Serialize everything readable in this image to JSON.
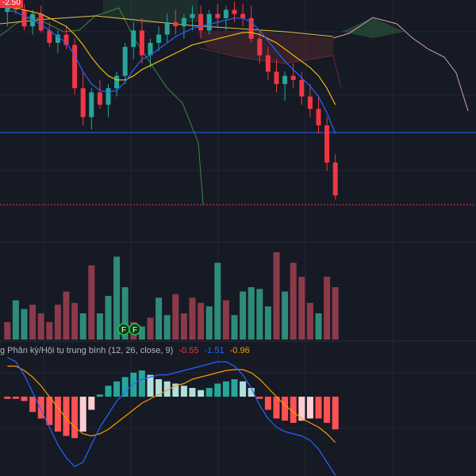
{
  "colors": {
    "background": "#161a25",
    "grid": "#232733",
    "up": "#26a69a",
    "down": "#f23645",
    "vol_up": "#2e8b7a",
    "vol_down": "#8b3a4a",
    "hist_pos_strong": "#26a69a",
    "hist_pos_weak": "#b2dfdb",
    "hist_neg_strong": "#ff5252",
    "hist_neg_weak": "#ffcdd2",
    "macd_line": "#2962ff",
    "signal_line": "#ff9800",
    "hline": "#2962ff",
    "last_price_line": "#f23645",
    "ma_blue": "#2962ff",
    "ma_orange": "#f0b90b",
    "ma_yellow": "#e5c04a",
    "lagging_green": "#3c8a3c",
    "cloud_green": "#2a5a3a",
    "cloud_red": "#5a2a30",
    "kumo_pink": "#d8a0a8"
  },
  "top_badge": "-2.50",
  "macd_legend": {
    "name": "g Phân kỳ/Hội tụ trung bình (12, 26, close, 9)",
    "v1": "-0.55",
    "v2": "-1.51",
    "v3": "-0.96"
  },
  "flags": [
    "F",
    "F"
  ],
  "chart_data": {
    "type": "candlestick",
    "title": "",
    "xlabel": "",
    "ylabel": "",
    "ylim": [
      0,
      100
    ],
    "candles": [
      {
        "o": 95,
        "h": 99,
        "l": 88,
        "c": 97
      },
      {
        "o": 97,
        "h": 100,
        "l": 94,
        "c": 96
      },
      {
        "o": 96,
        "h": 99,
        "l": 86,
        "c": 88
      },
      {
        "o": 88,
        "h": 96,
        "l": 84,
        "c": 94
      },
      {
        "o": 94,
        "h": 98,
        "l": 85,
        "c": 86
      },
      {
        "o": 86,
        "h": 90,
        "l": 78,
        "c": 80
      },
      {
        "o": 80,
        "h": 86,
        "l": 75,
        "c": 84
      },
      {
        "o": 84,
        "h": 88,
        "l": 77,
        "c": 79
      },
      {
        "o": 79,
        "h": 82,
        "l": 55,
        "c": 58
      },
      {
        "o": 58,
        "h": 66,
        "l": 40,
        "c": 44
      },
      {
        "o": 44,
        "h": 58,
        "l": 38,
        "c": 56
      },
      {
        "o": 56,
        "h": 62,
        "l": 48,
        "c": 50
      },
      {
        "o": 50,
        "h": 60,
        "l": 44,
        "c": 58
      },
      {
        "o": 58,
        "h": 66,
        "l": 54,
        "c": 64
      },
      {
        "o": 64,
        "h": 80,
        "l": 60,
        "c": 78
      },
      {
        "o": 78,
        "h": 90,
        "l": 72,
        "c": 86
      },
      {
        "o": 86,
        "h": 92,
        "l": 70,
        "c": 74
      },
      {
        "o": 74,
        "h": 82,
        "l": 68,
        "c": 80
      },
      {
        "o": 80,
        "h": 88,
        "l": 76,
        "c": 84
      },
      {
        "o": 84,
        "h": 94,
        "l": 80,
        "c": 90
      },
      {
        "o": 90,
        "h": 96,
        "l": 84,
        "c": 88
      },
      {
        "o": 88,
        "h": 94,
        "l": 82,
        "c": 92
      },
      {
        "o": 92,
        "h": 98,
        "l": 86,
        "c": 94
      },
      {
        "o": 94,
        "h": 98,
        "l": 82,
        "c": 86
      },
      {
        "o": 86,
        "h": 96,
        "l": 84,
        "c": 94
      },
      {
        "o": 94,
        "h": 99,
        "l": 88,
        "c": 92
      },
      {
        "o": 92,
        "h": 98,
        "l": 86,
        "c": 96
      },
      {
        "o": 96,
        "h": 100,
        "l": 90,
        "c": 94
      },
      {
        "o": 94,
        "h": 99,
        "l": 88,
        "c": 92
      },
      {
        "o": 92,
        "h": 98,
        "l": 80,
        "c": 82
      },
      {
        "o": 82,
        "h": 86,
        "l": 70,
        "c": 74
      },
      {
        "o": 74,
        "h": 78,
        "l": 62,
        "c": 66
      },
      {
        "o": 66,
        "h": 72,
        "l": 56,
        "c": 60
      },
      {
        "o": 60,
        "h": 66,
        "l": 52,
        "c": 64
      },
      {
        "o": 64,
        "h": 70,
        "l": 58,
        "c": 62
      },
      {
        "o": 62,
        "h": 66,
        "l": 50,
        "c": 54
      },
      {
        "o": 54,
        "h": 60,
        "l": 44,
        "c": 48
      },
      {
        "o": 48,
        "h": 54,
        "l": 36,
        "c": 40
      },
      {
        "o": 40,
        "h": 44,
        "l": 18,
        "c": 22
      },
      {
        "o": 22,
        "h": 26,
        "l": 4,
        "c": 6
      }
    ],
    "ma_fast": [
      96,
      95,
      93,
      91,
      89,
      86,
      83,
      80,
      74,
      66,
      60,
      57,
      56,
      57,
      61,
      67,
      72,
      74,
      77,
      80,
      83,
      85,
      87,
      88,
      89,
      90,
      91,
      92,
      92,
      90,
      86,
      81,
      76,
      71,
      67,
      63,
      59,
      54,
      46,
      36
    ],
    "ma_slow": [
      97,
      97,
      96,
      95,
      94,
      92,
      90,
      88,
      84,
      79,
      73,
      68,
      64,
      62,
      62,
      64,
      67,
      69,
      71,
      73,
      75,
      77,
      79,
      80,
      81,
      82,
      83,
      84,
      85,
      85,
      84,
      82,
      80,
      77,
      74,
      71,
      68,
      64,
      58,
      50
    ],
    "volumes": [
      {
        "v": 20,
        "up": false
      },
      {
        "v": 45,
        "up": true
      },
      {
        "v": 35,
        "up": true
      },
      {
        "v": 40,
        "up": false
      },
      {
        "v": 30,
        "up": false
      },
      {
        "v": 20,
        "up": false
      },
      {
        "v": 40,
        "up": false
      },
      {
        "v": 55,
        "up": false
      },
      {
        "v": 42,
        "up": false
      },
      {
        "v": 30,
        "up": true
      },
      {
        "v": 85,
        "up": false
      },
      {
        "v": 30,
        "up": true
      },
      {
        "v": 50,
        "up": true
      },
      {
        "v": 95,
        "up": true
      },
      {
        "v": 60,
        "up": true
      },
      {
        "v": 20,
        "up": false
      },
      {
        "v": 15,
        "up": true
      },
      {
        "v": 25,
        "up": false
      },
      {
        "v": 48,
        "up": true
      },
      {
        "v": 28,
        "up": true
      },
      {
        "v": 52,
        "up": false
      },
      {
        "v": 30,
        "up": false
      },
      {
        "v": 48,
        "up": false
      },
      {
        "v": 42,
        "up": false
      },
      {
        "v": 38,
        "up": true
      },
      {
        "v": 88,
        "up": true
      },
      {
        "v": 45,
        "up": false
      },
      {
        "v": 28,
        "up": true
      },
      {
        "v": 55,
        "up": true
      },
      {
        "v": 60,
        "up": true
      },
      {
        "v": 58,
        "up": true
      },
      {
        "v": 38,
        "up": true
      },
      {
        "v": 100,
        "up": false
      },
      {
        "v": 55,
        "up": true
      },
      {
        "v": 88,
        "up": false
      },
      {
        "v": 72,
        "up": false
      },
      {
        "v": 42,
        "up": false
      },
      {
        "v": 30,
        "up": true
      },
      {
        "v": 72,
        "up": false
      },
      {
        "v": 60,
        "up": false
      }
    ],
    "macd_hist": [
      -0.05,
      -0.05,
      -0.1,
      -0.35,
      -0.5,
      -0.65,
      -0.8,
      -0.9,
      -0.95,
      -0.8,
      -0.3,
      0.05,
      0.25,
      0.35,
      0.45,
      0.55,
      0.6,
      0.5,
      0.4,
      0.35,
      0.3,
      0.25,
      0.2,
      0.15,
      0.2,
      0.3,
      0.35,
      0.4,
      0.35,
      0.2,
      -0.05,
      -0.3,
      -0.5,
      -0.55,
      -0.6,
      -0.55,
      -0.5,
      -0.5,
      -0.6,
      -0.75
    ],
    "macd_line": [
      0.9,
      0.8,
      0.5,
      0.1,
      -0.3,
      -0.7,
      -1.1,
      -1.4,
      -1.6,
      -1.5,
      -1.1,
      -0.7,
      -0.4,
      -0.1,
      0.1,
      0.3,
      0.4,
      0.45,
      0.5,
      0.5,
      0.55,
      0.6,
      0.65,
      0.7,
      0.75,
      0.8,
      0.8,
      0.7,
      0.5,
      0.2,
      -0.2,
      -0.5,
      -0.7,
      -0.8,
      -0.85,
      -0.9,
      -1.0,
      -1.2,
      -1.5,
      -1.8
    ],
    "signal_line": [
      0.7,
      0.7,
      0.6,
      0.45,
      0.25,
      0.0,
      -0.25,
      -0.5,
      -0.7,
      -0.85,
      -0.9,
      -0.85,
      -0.75,
      -0.6,
      -0.45,
      -0.3,
      -0.15,
      -0.05,
      0.05,
      0.15,
      0.25,
      0.3,
      0.4,
      0.45,
      0.5,
      0.55,
      0.6,
      0.62,
      0.62,
      0.55,
      0.4,
      0.2,
      0.0,
      -0.2,
      -0.35,
      -0.5,
      -0.6,
      -0.7,
      -0.85,
      -1.05
    ]
  }
}
